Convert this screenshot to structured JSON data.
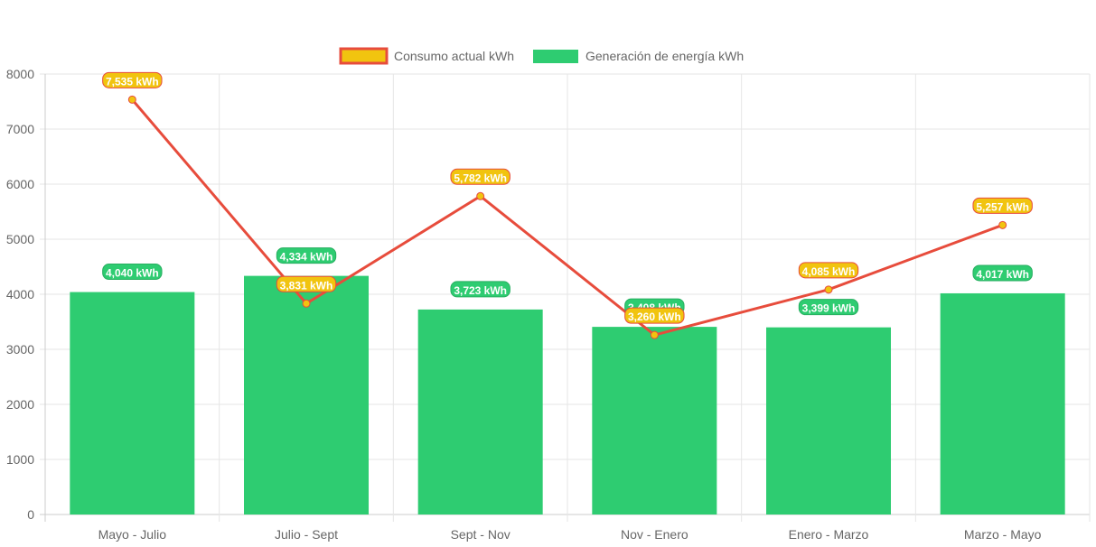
{
  "chart_data": {
    "type": "bar",
    "categories": [
      "Mayo - Julio",
      "Julio - Sept",
      "Sept - Nov",
      "Nov - Enero",
      "Enero - Marzo",
      "Marzo - Mayo"
    ],
    "series": [
      {
        "name": "Consumo actual kWh",
        "type": "line",
        "values": [
          7535,
          3831,
          5782,
          3260,
          4085,
          5257
        ],
        "labels": [
          "7,535 kWh",
          "3,831 kWh",
          "5,782 kWh",
          "3,260 kWh",
          "4,085 kWh",
          "5,257 kWh"
        ],
        "color": "#e74c3c",
        "fill": "#f1c40f"
      },
      {
        "name": "Generación de energía kWh",
        "type": "bar",
        "values": [
          4040,
          4334,
          3723,
          3408,
          3399,
          4017
        ],
        "labels": [
          "4,040 kWh",
          "4,334 kWh",
          "3,723 kWh",
          "3,408 kWh",
          "3,399 kWh",
          "4,017 kWh"
        ],
        "color": "#2ecc71"
      }
    ],
    "ylim": [
      0,
      8000
    ],
    "yticks": [
      "0",
      "1000",
      "2000",
      "3000",
      "4000",
      "5000",
      "6000",
      "7000",
      "8000"
    ],
    "grid": true,
    "legend": "top"
  }
}
